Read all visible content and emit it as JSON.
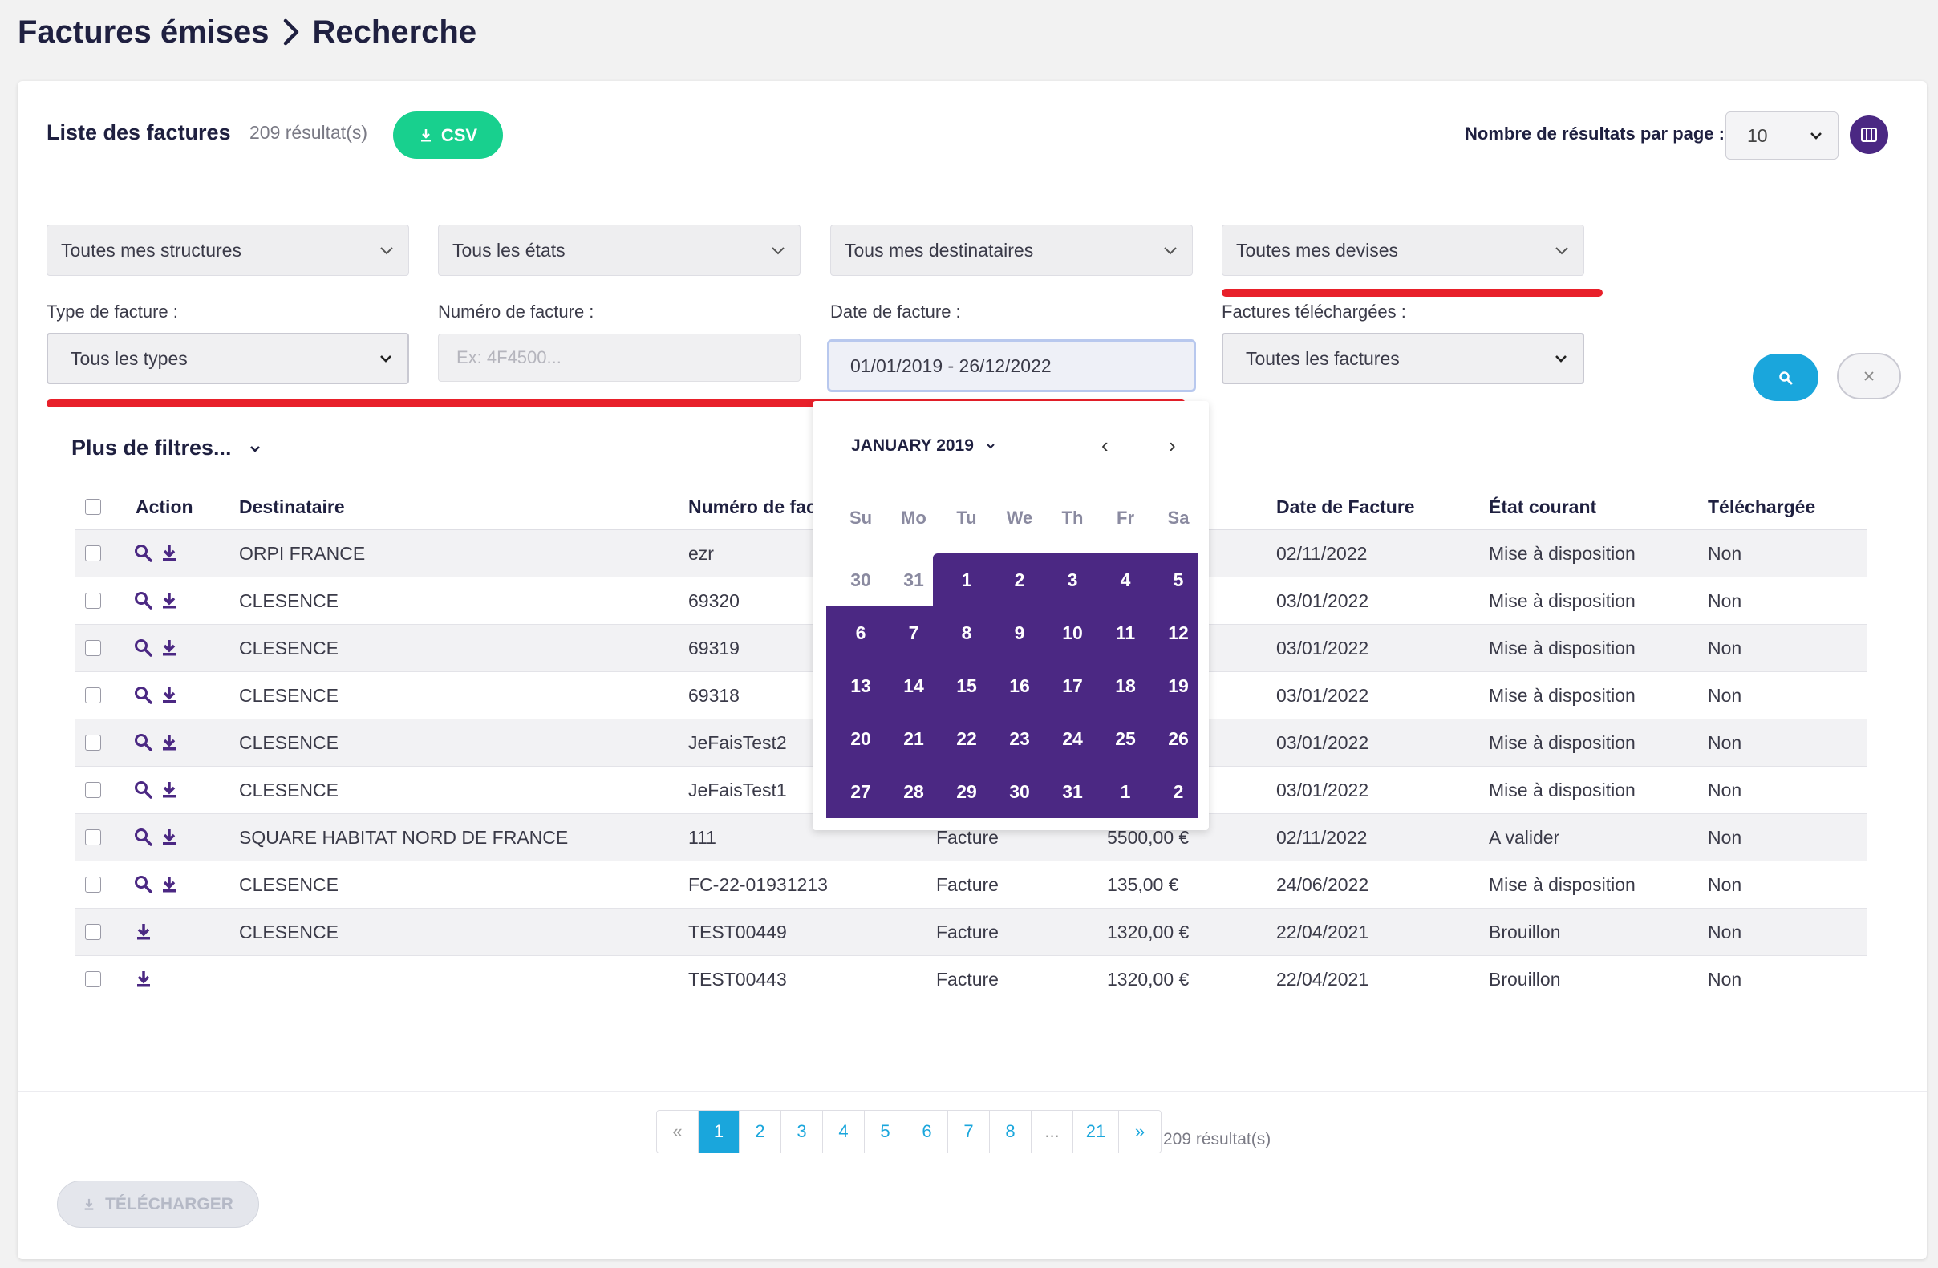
{
  "breadcrumb": {
    "parent": "Factures émises",
    "current": "Recherche"
  },
  "list": {
    "title": "Liste des factures",
    "result_count": "209 résultat(s)",
    "csv_label": "CSV"
  },
  "per_page": {
    "label": "Nombre de résultats par page :",
    "value": "10"
  },
  "filters": {
    "structures": "Toutes mes structures",
    "etats": "Tous les états",
    "destinataires": "Tous mes destinataires",
    "devises": "Toutes mes devises",
    "type_label": "Type de facture :",
    "type_value": "Tous les types",
    "numero_label": "Numéro de facture :",
    "numero_placeholder": "Ex: 4F4500...",
    "date_label": "Date de facture :",
    "date_value": "01/01/2019 - 26/12/2022",
    "telechargees_label": "Factures téléchargées :",
    "telechargees_value": "Toutes les factures",
    "more": "Plus de filtres..."
  },
  "colors": {
    "accent_purple": "#4b2883",
    "accent_blue": "#1aa6dc",
    "accent_green": "#18d08e",
    "highlight_red": "#e8202a"
  },
  "table": {
    "headers": {
      "action": "Action",
      "destinataire": "Destinataire",
      "numero": "Numéro de fac",
      "date": "Date de Facture",
      "etat": "État courant",
      "telechargee": "Téléchargée"
    },
    "rows": [
      {
        "destinataire": "ORPI FRANCE",
        "numero": "ezr",
        "type": "",
        "montant": "",
        "date": "02/11/2022",
        "etat": "Mise à disposition",
        "telechargee": "Non",
        "actions": [
          "search-icon",
          "download-icon"
        ]
      },
      {
        "destinataire": "CLESENCE",
        "numero": "69320",
        "type": "",
        "montant": "",
        "date": "03/01/2022",
        "etat": "Mise à disposition",
        "telechargee": "Non",
        "actions": [
          "search-icon",
          "download-icon"
        ]
      },
      {
        "destinataire": "CLESENCE",
        "numero": "69319",
        "type": "",
        "montant": "",
        "date": "03/01/2022",
        "etat": "Mise à disposition",
        "telechargee": "Non",
        "actions": [
          "search-icon",
          "download-icon"
        ]
      },
      {
        "destinataire": "CLESENCE",
        "numero": "69318",
        "type": "",
        "montant": "",
        "date": "03/01/2022",
        "etat": "Mise à disposition",
        "telechargee": "Non",
        "actions": [
          "search-icon",
          "download-icon"
        ]
      },
      {
        "destinataire": "CLESENCE",
        "numero": "JeFaisTest2",
        "type": "",
        "montant": "",
        "date": "03/01/2022",
        "etat": "Mise à disposition",
        "telechargee": "Non",
        "actions": [
          "search-icon",
          "download-icon"
        ]
      },
      {
        "destinataire": "CLESENCE",
        "numero": "JeFaisTest1",
        "type": "",
        "montant": "",
        "date": "03/01/2022",
        "etat": "Mise à disposition",
        "telechargee": "Non",
        "actions": [
          "search-icon",
          "download-icon"
        ]
      },
      {
        "destinataire": "SQUARE HABITAT NORD DE FRANCE",
        "numero": "111",
        "type": "Facture",
        "montant": "5500,00 €",
        "date": "02/11/2022",
        "etat": "A valider",
        "telechargee": "Non",
        "actions": [
          "search-icon",
          "download-icon"
        ]
      },
      {
        "destinataire": "CLESENCE",
        "numero": "FC-22-01931213",
        "type": "Facture",
        "montant": "135,00 €",
        "date": "24/06/2022",
        "etat": "Mise à disposition",
        "telechargee": "Non",
        "actions": [
          "search-icon",
          "download-icon"
        ]
      },
      {
        "destinataire": "CLESENCE",
        "numero": "TEST00449",
        "type": "Facture",
        "montant": "1320,00 €",
        "date": "22/04/2021",
        "etat": "Brouillon",
        "telechargee": "Non",
        "actions": [
          "download-icon"
        ]
      },
      {
        "destinataire": "",
        "numero": "TEST00443",
        "type": "Facture",
        "montant": "1320,00 €",
        "date": "22/04/2021",
        "etat": "Brouillon",
        "telechargee": "Non",
        "actions": [
          "download-icon"
        ]
      }
    ]
  },
  "calendar": {
    "month": "JANUARY 2019",
    "prev": "‹",
    "next": "›",
    "weekdays": [
      "Su",
      "Mo",
      "Tu",
      "We",
      "Th",
      "Fr",
      "Sa"
    ],
    "weeks": [
      [
        "30",
        "31",
        "1",
        "2",
        "3",
        "4",
        "5"
      ],
      [
        "6",
        "7",
        "8",
        "9",
        "10",
        "11",
        "12"
      ],
      [
        "13",
        "14",
        "15",
        "16",
        "17",
        "18",
        "19"
      ],
      [
        "20",
        "21",
        "22",
        "23",
        "24",
        "25",
        "26"
      ],
      [
        "27",
        "28",
        "29",
        "30",
        "31",
        "1",
        "2"
      ]
    ]
  },
  "pagination": {
    "first": "«",
    "pages": [
      "1",
      "2",
      "3",
      "4",
      "5",
      "6",
      "7",
      "8",
      "...",
      "21"
    ],
    "current": "1",
    "last": "»",
    "count": "209 résultat(s)"
  },
  "download_label": "TÉLÉCHARGER"
}
